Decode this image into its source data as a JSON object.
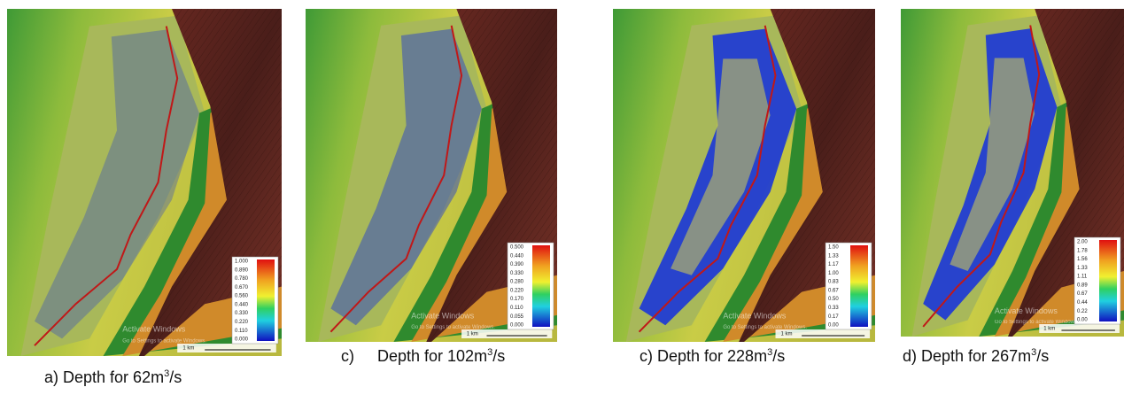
{
  "panels": [
    {
      "label": "a)",
      "text": "Depth for 62m",
      "sup": "3",
      "unit": "/s",
      "legend": [
        "1.000",
        "0.890",
        "0.780",
        "0.670",
        "0.560",
        "0.440",
        "0.330",
        "0.220",
        "0.110",
        "0.000"
      ]
    },
    {
      "label": "c)",
      "text": "Depth for 102m",
      "sup": "3",
      "unit": "/s",
      "legend": [
        "0.500",
        "0.440",
        "0.390",
        "0.330",
        "0.280",
        "0.220",
        "0.170",
        "0.110",
        "0.055",
        "0.000"
      ]
    },
    {
      "label": "c)",
      "text": "Depth for 228m",
      "sup": "3",
      "unit": "/s",
      "legend": [
        "1.50",
        "1.33",
        "1.17",
        "1.00",
        "0.83",
        "0.67",
        "0.50",
        "0.33",
        "0.17",
        "0.00"
      ]
    },
    {
      "label": "d)",
      "text": "Depth for 267m",
      "sup": "3",
      "unit": "/s",
      "legend": [
        "2.00",
        "1.78",
        "1.56",
        "1.33",
        "1.11",
        "0.89",
        "0.67",
        "0.44",
        "0.22",
        "0.00"
      ]
    }
  ],
  "scale_bar": "1 km",
  "watermark": {
    "title": "Activate Windows",
    "subtitle": "Go to Settings to activate Windows."
  }
}
